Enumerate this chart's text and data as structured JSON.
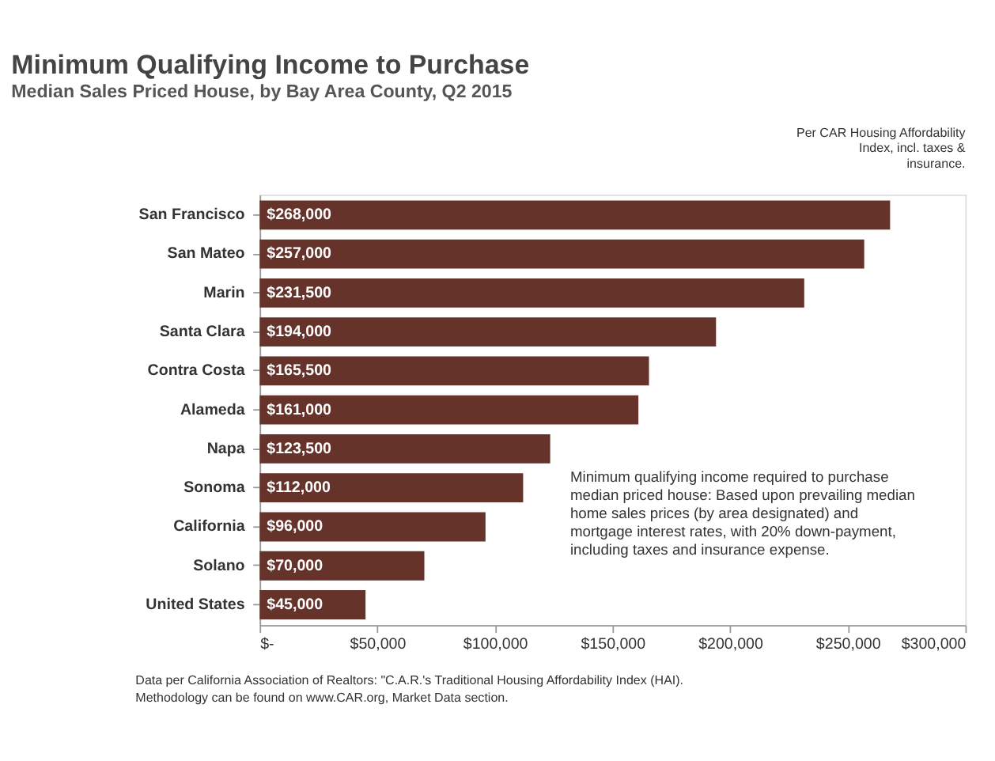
{
  "chart_data": {
    "type": "bar",
    "orientation": "horizontal",
    "title": "Minimum Qualifying Income to Purchase",
    "subtitle": "Median Sales Priced House, by Bay Area County, Q2 2015",
    "categories": [
      "San Francisco",
      "San Mateo",
      "Marin",
      "Santa Clara",
      "Contra Costa",
      "Alameda",
      "Napa",
      "Sonoma",
      "California",
      "Solano",
      "United States"
    ],
    "values": [
      268000,
      257000,
      231500,
      194000,
      165500,
      161000,
      123500,
      112000,
      96000,
      70000,
      45000
    ],
    "value_labels": [
      "$268,000",
      "$257,000",
      "$231,500",
      "$194,000",
      "$165,500",
      "$161,000",
      "$123,500",
      "$112,000",
      "$96,000",
      "$70,000",
      "$45,000"
    ],
    "color": "#66332b",
    "xlim": [
      0,
      300000
    ],
    "xticks": [
      {
        "value": 0,
        "label": "$-"
      },
      {
        "value": 50000,
        "label": "$50,000"
      },
      {
        "value": 100000,
        "label": "$100,000"
      },
      {
        "value": 150000,
        "label": "$150,000"
      },
      {
        "value": 200000,
        "label": "$200,000"
      },
      {
        "value": 250000,
        "label": "$250,000"
      },
      {
        "value": 300000,
        "label": "$300,000"
      }
    ],
    "grid": false,
    "annotations": [
      "Per CAR Housing Affordability Index, incl. taxes & insurance.",
      "Minimum qualifying income required to purchase median priced house: Based upon prevailing median home sales prices (by area designated) and mortgage interest rates, with 20% down-payment, including taxes and insurance expense.",
      "Data per California Association of Realtors: \"C.A.R.'s Traditional Housing Affordability Index (HAI). Methodology can be found on www.CAR.org, Market Data section."
    ]
  }
}
